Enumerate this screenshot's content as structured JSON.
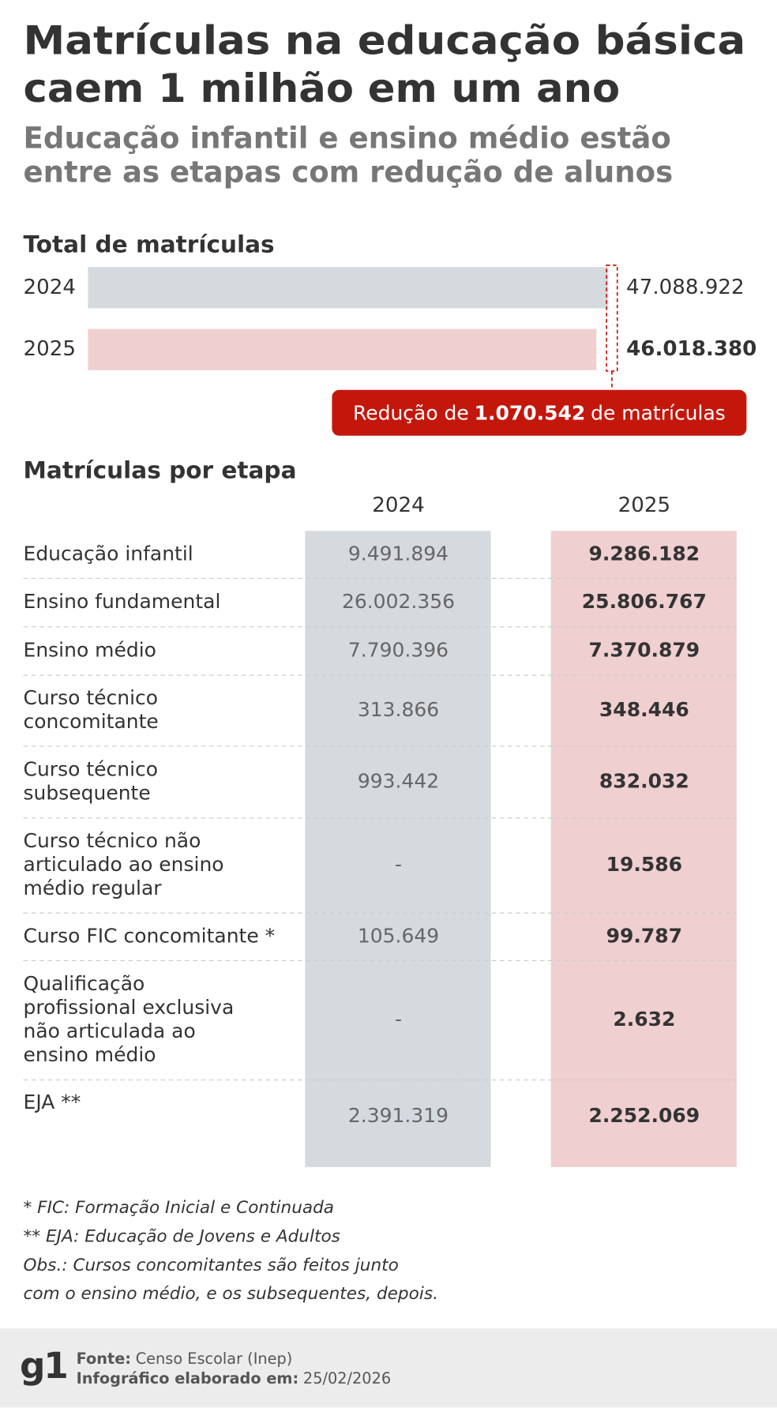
{
  "header": {
    "title": [
      "Matrículas na educação básica",
      "caem 1 milhão em um ano"
    ],
    "subtitle": [
      "Educação infantil e ensino médio estão",
      "entre as etapas com redução de alunos"
    ]
  },
  "chart_data": {
    "type": "bar",
    "orientation": "horizontal",
    "title": "Total de matrículas",
    "categories": [
      "2024",
      "2025"
    ],
    "values": [
      47088922,
      46018380
    ],
    "value_labels": [
      "47.088.922",
      "46.018.380"
    ],
    "colors": [
      "#d5dadf",
      "#f0cfd1"
    ],
    "annotation": {
      "prefix": "Redução de",
      "value": "1.070.542",
      "suffix": "de matrículas",
      "color": "#c4170c"
    }
  },
  "table": {
    "title": "Matrículas por etapa",
    "columns": [
      "2024",
      "2025"
    ],
    "column_colors": [
      "#d5dadf",
      "#f0cfd1"
    ],
    "rows": [
      {
        "label": [
          "Educação infantil"
        ],
        "values": [
          "9.491.894",
          "9.286.182"
        ]
      },
      {
        "label": [
          "Ensino fundamental"
        ],
        "values": [
          "26.002.356",
          "25.806.767"
        ]
      },
      {
        "label": [
          "Ensino médio"
        ],
        "values": [
          "7.790.396",
          "7.370.879"
        ]
      },
      {
        "label": [
          "Curso técnico",
          "concomitante"
        ],
        "values": [
          "313.866",
          "348.446"
        ]
      },
      {
        "label": [
          "Curso técnico",
          "subsequente"
        ],
        "values": [
          "993.442",
          "832.032"
        ]
      },
      {
        "label": [
          "Curso técnico não",
          "articulado ao ensino",
          "médio regular"
        ],
        "values": [
          "-",
          "19.586"
        ]
      },
      {
        "label": [
          "Curso FIC concomitante *"
        ],
        "values": [
          "105.649",
          "99.787"
        ]
      },
      {
        "label": [
          "Qualificação",
          "profissional exclusiva",
          "não articulada ao",
          "ensino médio"
        ],
        "values": [
          "-",
          "2.632"
        ]
      },
      {
        "label": [
          "EJA **"
        ],
        "values": [
          "2.391.319",
          "2.252.069"
        ]
      }
    ]
  },
  "notes": [
    "* FIC: Formação Inicial e Continuada",
    "** EJA: Educação de Jovens e Adultos",
    "Obs.: Cursos concomitantes são feitos junto",
    "com o ensino médio, e os subsequentes, depois."
  ],
  "footer": {
    "logo": "g1",
    "source_label": "Fonte:",
    "source": "Censo Escolar (Inep)",
    "date_label": "Infográfico elaborado em:",
    "date": "25/02/2026"
  }
}
